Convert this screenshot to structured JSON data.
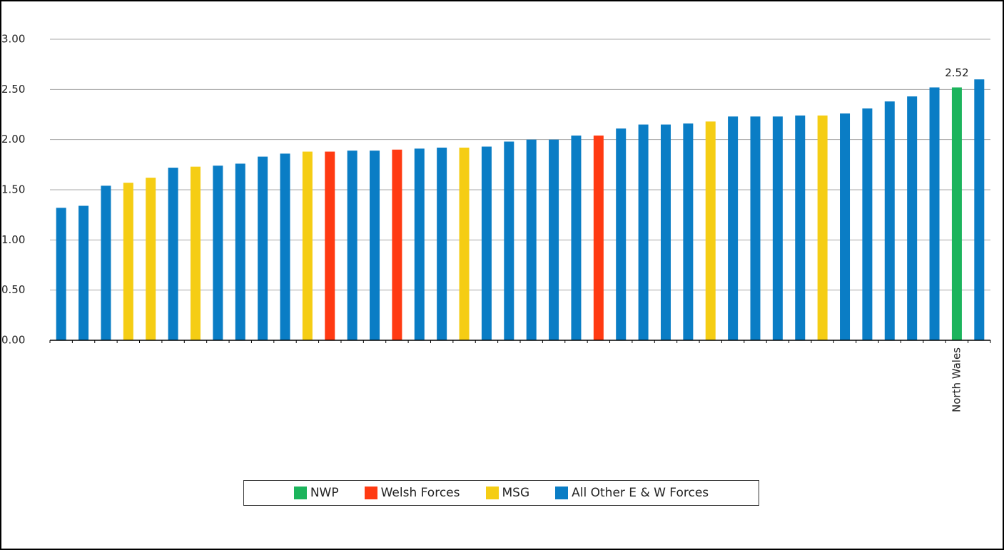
{
  "chart_data": {
    "type": "bar",
    "categories": [
      null,
      null,
      null,
      null,
      null,
      null,
      null,
      null,
      null,
      null,
      null,
      null,
      null,
      null,
      null,
      null,
      null,
      null,
      null,
      null,
      null,
      null,
      null,
      null,
      null,
      null,
      null,
      null,
      null,
      null,
      null,
      null,
      null,
      null,
      null,
      null,
      null,
      null,
      null,
      null,
      "North Wales",
      null
    ],
    "series": [
      {
        "name": "NWP",
        "color": "#1cb45c",
        "show_labels": true,
        "values": [
          null,
          null,
          null,
          null,
          null,
          null,
          null,
          null,
          null,
          null,
          null,
          null,
          null,
          null,
          null,
          null,
          null,
          null,
          null,
          null,
          null,
          null,
          null,
          null,
          null,
          null,
          null,
          null,
          null,
          null,
          null,
          null,
          null,
          null,
          null,
          null,
          null,
          null,
          null,
          null,
          2.52,
          null
        ]
      },
      {
        "name": "Welsh Forces",
        "color": "#ff3a12",
        "values": [
          null,
          null,
          null,
          null,
          null,
          null,
          null,
          null,
          null,
          null,
          null,
          null,
          1.88,
          null,
          null,
          1.9,
          null,
          null,
          null,
          null,
          null,
          null,
          null,
          null,
          2.04,
          null,
          null,
          null,
          null,
          null,
          null,
          null,
          null,
          null,
          null,
          null,
          null,
          null,
          null,
          null,
          null,
          null
        ]
      },
      {
        "name": "MSG",
        "color": "#f5cd14",
        "values": [
          null,
          null,
          null,
          1.57,
          1.62,
          null,
          1.73,
          null,
          null,
          null,
          null,
          1.88,
          null,
          null,
          null,
          null,
          null,
          null,
          1.92,
          null,
          null,
          null,
          null,
          null,
          null,
          null,
          null,
          null,
          null,
          2.18,
          null,
          null,
          null,
          null,
          2.24,
          null,
          null,
          null,
          null,
          null,
          null,
          null
        ]
      },
      {
        "name": "All Other E & W Forces",
        "color": "#0a7dc5",
        "values": [
          1.32,
          1.34,
          1.54,
          null,
          null,
          1.72,
          null,
          1.74,
          1.76,
          1.83,
          1.86,
          null,
          null,
          1.89,
          1.89,
          null,
          1.91,
          1.92,
          null,
          1.93,
          1.98,
          2.0,
          2.0,
          2.04,
          null,
          2.11,
          2.15,
          2.15,
          2.16,
          null,
          2.23,
          2.23,
          2.23,
          2.24,
          null,
          2.26,
          2.31,
          2.38,
          2.43,
          2.52,
          null,
          2.6
        ]
      }
    ],
    "ylim": [
      0,
      3
    ],
    "yticks": [
      {
        "value": 0,
        "label": "0.00"
      },
      {
        "value": 0.5,
        "label": "0.50"
      },
      {
        "value": 1,
        "label": "1.00"
      },
      {
        "value": 1.5,
        "label": "1.50"
      },
      {
        "value": 2,
        "label": "2.00"
      },
      {
        "value": 2.5,
        "label": "2.50"
      },
      {
        "value": 3,
        "label": "3.00"
      }
    ],
    "grid": true,
    "legend": "bottom"
  }
}
